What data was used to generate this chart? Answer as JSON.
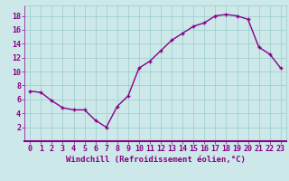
{
  "x": [
    0,
    1,
    2,
    3,
    4,
    5,
    6,
    7,
    8,
    9,
    10,
    11,
    12,
    13,
    14,
    15,
    16,
    17,
    18,
    19,
    20,
    21,
    22,
    23
  ],
  "y": [
    7.2,
    7.0,
    5.8,
    4.8,
    4.5,
    4.5,
    3.0,
    2.0,
    5.0,
    6.5,
    10.5,
    11.5,
    13.0,
    14.5,
    15.5,
    16.5,
    17.0,
    18.0,
    18.2,
    18.0,
    17.5,
    13.5,
    12.5,
    10.5
  ],
  "line_color": "#880088",
  "marker": "+",
  "bg_color": "#cce8e8",
  "grid_color": "#99cccc",
  "xlabel": "Windchill (Refroidissement éolien,°C)",
  "xlim": [
    -0.5,
    23.5
  ],
  "ylim": [
    0,
    19.5
  ],
  "yticks": [
    2,
    4,
    6,
    8,
    10,
    12,
    14,
    16,
    18
  ],
  "xticks": [
    0,
    1,
    2,
    3,
    4,
    5,
    6,
    7,
    8,
    9,
    10,
    11,
    12,
    13,
    14,
    15,
    16,
    17,
    18,
    19,
    20,
    21,
    22,
    23
  ],
  "xlabel_fontsize": 6.5,
  "tick_fontsize": 6.0,
  "line_width": 1.0,
  "marker_size": 3.5,
  "text_color": "#880088"
}
